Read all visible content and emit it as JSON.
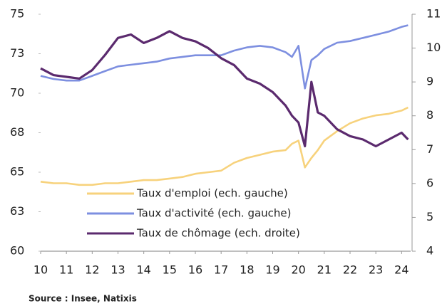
{
  "chart_data": {
    "type": "line",
    "x": [
      2010,
      2010.5,
      2011,
      2011.5,
      2012,
      2012.5,
      2013,
      2013.5,
      2014,
      2014.5,
      2015,
      2015.5,
      2016,
      2016.5,
      2017,
      2017.5,
      2018,
      2018.5,
      2019,
      2019.5,
      2019.75,
      2020,
      2020.25,
      2020.5,
      2020.75,
      2021,
      2021.5,
      2022,
      2022.5,
      2023,
      2023.5,
      2024,
      2024.25
    ],
    "series": [
      {
        "name": "Taux d'emploi (ech. gauche)",
        "color": "#f7d27c",
        "axis": "y",
        "values": [
          64.4,
          64.3,
          64.3,
          64.2,
          64.2,
          64.3,
          64.3,
          64.4,
          64.5,
          64.5,
          64.6,
          64.7,
          64.9,
          65.0,
          65.1,
          65.6,
          65.9,
          66.1,
          66.3,
          66.4,
          66.8,
          67.0,
          65.3,
          65.9,
          66.4,
          67.0,
          67.6,
          68.1,
          68.4,
          68.6,
          68.7,
          68.9,
          69.1
        ]
      },
      {
        "name": "Taux d'activité (ech. gauche)",
        "color": "#7d8fe0",
        "axis": "y",
        "values": [
          71.1,
          70.9,
          70.8,
          70.8,
          71.1,
          71.4,
          71.7,
          71.8,
          71.9,
          72.0,
          72.2,
          72.3,
          72.4,
          72.4,
          72.4,
          72.7,
          72.9,
          73.0,
          72.9,
          72.6,
          72.3,
          73.0,
          70.3,
          72.1,
          72.4,
          72.8,
          73.2,
          73.3,
          73.5,
          73.7,
          73.9,
          74.2,
          74.3
        ]
      },
      {
        "name": "Taux de chômage (ech. droite)",
        "color": "#5b2a6e",
        "axis": "y2",
        "values": [
          9.4,
          9.2,
          9.15,
          9.1,
          9.35,
          9.8,
          10.3,
          10.4,
          10.15,
          10.3,
          10.5,
          10.3,
          10.2,
          10.0,
          9.7,
          9.5,
          9.1,
          8.95,
          8.7,
          8.3,
          8.0,
          7.8,
          7.1,
          9.0,
          8.1,
          8.0,
          7.6,
          7.4,
          7.3,
          7.1,
          7.3,
          7.5,
          7.3
        ]
      }
    ],
    "xlim": [
      2010,
      2024.35
    ],
    "xticks": [
      {
        "value": 2010,
        "label": "10"
      },
      {
        "value": 2011,
        "label": "11"
      },
      {
        "value": 2012,
        "label": "12"
      },
      {
        "value": 2013,
        "label": "13"
      },
      {
        "value": 2014,
        "label": "14"
      },
      {
        "value": 2015,
        "label": "15"
      },
      {
        "value": 2016,
        "label": "16"
      },
      {
        "value": 2017,
        "label": "17"
      },
      {
        "value": 2018,
        "label": "18"
      },
      {
        "value": 2019,
        "label": "19"
      },
      {
        "value": 2020,
        "label": "20"
      },
      {
        "value": 2021,
        "label": "21"
      },
      {
        "value": 2022,
        "label": "22"
      },
      {
        "value": 2023,
        "label": "23"
      },
      {
        "value": 2024,
        "label": "24"
      }
    ],
    "ylim": [
      60,
      75
    ],
    "yticks": [
      60,
      {
        "value": 62.5,
        "label": "63"
      },
      65,
      {
        "value": 67.5,
        "label": "68"
      },
      70,
      {
        "value": 72.5,
        "label": "73"
      },
      75
    ],
    "y2lim": [
      4,
      11
    ],
    "y2ticks": [
      4,
      5,
      6,
      7,
      8,
      9,
      10,
      11
    ],
    "source": "Source : Insee, Natixis"
  }
}
